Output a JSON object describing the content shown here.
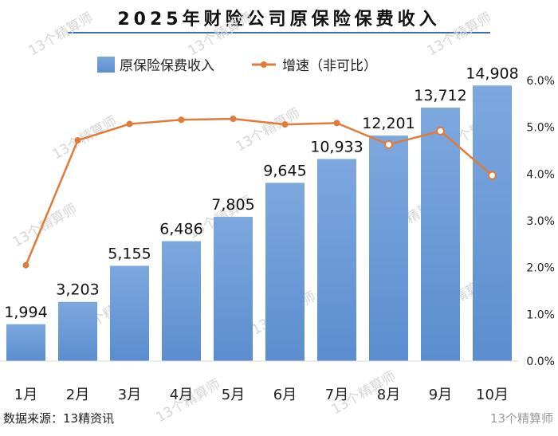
{
  "title": "2025年财险公司原保险保费收入",
  "source": "数据来源：13精资讯",
  "watermark": "13个精算师",
  "brand": "13个精算师",
  "colors": {
    "bar": "#6b9bd6",
    "bar_top": "#7fa9dd",
    "line": "#e07b39",
    "axis_text": "#222222",
    "grid": "#d9d9d9"
  },
  "chart_data": {
    "type": "bar",
    "categories": [
      "1月",
      "2月",
      "3月",
      "4月",
      "5月",
      "6月",
      "7月",
      "8月",
      "9月",
      "10月"
    ],
    "series": [
      {
        "name": "原保险保费收入",
        "type": "bar",
        "axis": "left",
        "values": [
          1994,
          3203,
          5155,
          6486,
          7805,
          9645,
          10933,
          12201,
          13712,
          14908
        ],
        "labels": [
          "1,994",
          "3,203",
          "5,155",
          "6,486",
          "7,805",
          "9,645",
          "10,933",
          "12,201",
          "13,712",
          "14,908"
        ]
      },
      {
        "name": "增速（非可比）",
        "type": "line",
        "axis": "right",
        "values": [
          2.05,
          4.72,
          5.07,
          5.16,
          5.18,
          5.06,
          5.09,
          4.63,
          4.92,
          3.97
        ]
      }
    ],
    "y_left": {
      "min": 0,
      "max": 16000
    },
    "y_right": {
      "min": 0.0,
      "max": 6.0,
      "ticks": [
        "0.0%",
        "1.0%",
        "2.0%",
        "3.0%",
        "4.0%",
        "5.0%",
        "6.0%"
      ]
    },
    "legend": [
      "原保险保费收入",
      "增速（非可比）"
    ],
    "legend_position": "top-left"
  }
}
